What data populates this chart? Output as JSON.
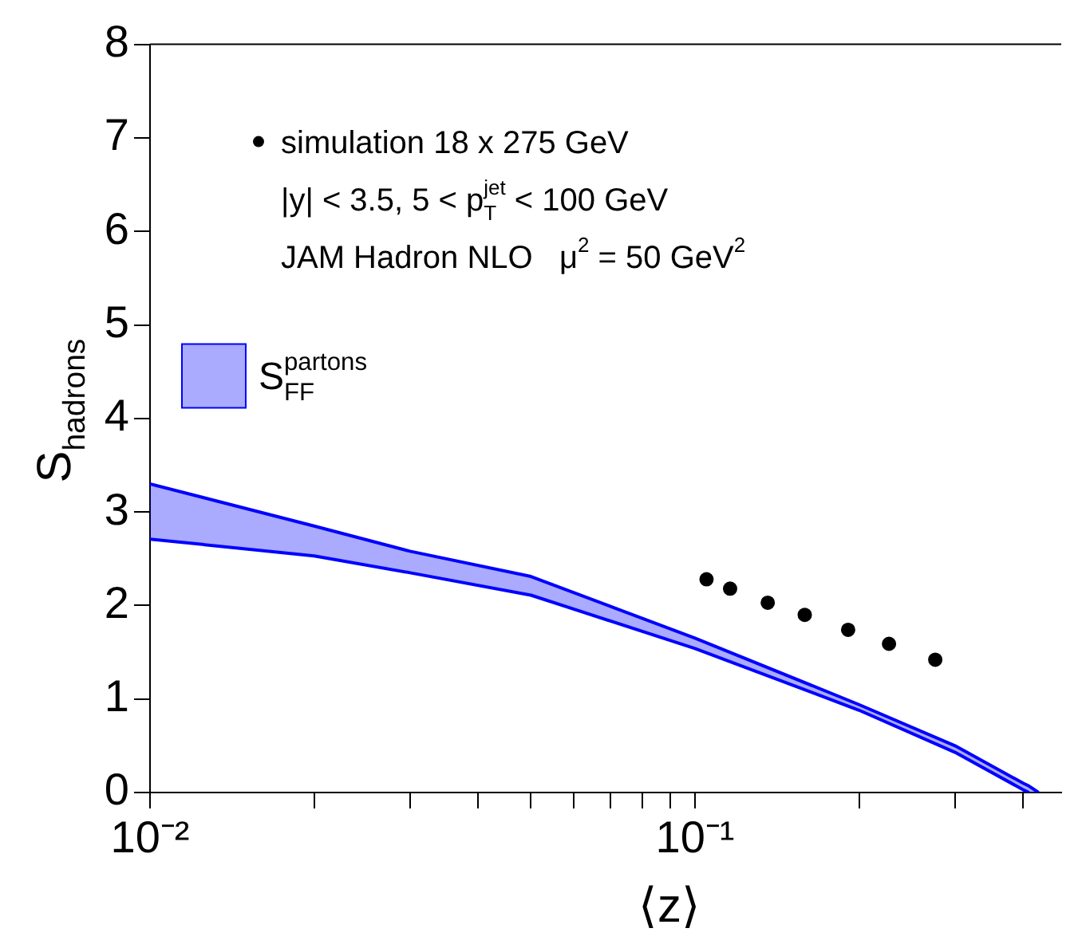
{
  "chart_data": {
    "type": "scatter",
    "xlabel": "⟨z⟩",
    "ylabel": "S$_{hadrons}$",
    "log": "x",
    "xlim": [
      0.01,
      0.47
    ],
    "xticks": [
      {
        "value": 0.01,
        "label": "10⁻²"
      },
      {
        "value": 0.02,
        "label": null
      },
      {
        "value": 0.03,
        "label": null
      },
      {
        "value": 0.04,
        "label": null
      },
      {
        "value": 0.05,
        "label": null
      },
      {
        "value": 0.06,
        "label": null
      },
      {
        "value": 0.07,
        "label": null
      },
      {
        "value": 0.08,
        "label": null
      },
      {
        "value": 0.09,
        "label": null
      },
      {
        "value": 0.1,
        "label": "10⁻¹"
      },
      {
        "value": 0.2,
        "label": null
      },
      {
        "value": 0.3,
        "label": null
      },
      {
        "value": 0.4,
        "label": null
      }
    ],
    "ylim": [
      0,
      8
    ],
    "yticks": [
      0,
      1,
      2,
      3,
      4,
      5,
      6,
      7,
      8
    ],
    "grid": false,
    "legend": "top left",
    "series": [
      {
        "name": "simulation 18 x 275 GeV",
        "type": "scatter",
        "marker": "circle",
        "color": "#000000",
        "x": [
          0.105,
          0.116,
          0.136,
          0.159,
          0.191,
          0.227,
          0.276
        ],
        "values": [
          2.28,
          2.18,
          2.03,
          1.9,
          1.74,
          1.59,
          1.42
        ]
      },
      {
        "name": "S$_{FF}$$^{partons}$",
        "type": "line",
        "marker": "none",
        "color": "#0000ff",
        "x": [
          0.01,
          0.02,
          0.03,
          0.05,
          0.1,
          0.2,
          0.3,
          0.4,
          0.41,
          0.427
        ],
        "values": [
          3.3,
          2.85,
          2.58,
          2.31,
          1.65,
          0.94,
          0.5,
          0.1,
          0.07,
          0
        ],
        "lower": [
          2.71,
          2.53,
          2.35,
          2.11,
          1.54,
          0.88,
          0.43,
          0.03,
          0,
          0
        ],
        "upper": [
          3.3,
          2.85,
          2.58,
          2.31,
          1.65,
          0.94,
          0.5,
          0.1,
          0.07,
          0
        ]
      },
      {
        "type": "line",
        "marker": "none",
        "color": "#0000ff",
        "x": [
          0.01,
          0.02,
          0.03,
          0.05,
          0.1,
          0.2,
          0.3,
          0.4,
          0.41
        ],
        "values": [
          2.71,
          2.53,
          2.35,
          2.11,
          1.54,
          0.88,
          0.43,
          0.03,
          0
        ]
      }
    ],
    "annotations": [
      "|y| < 3.5, 5 < p$_{T}$$^{jet}$ < 100 GeV",
      "JAM Hadron NLO   μ$^{2}$ = 50 GeV$^{2}$"
    ]
  }
}
